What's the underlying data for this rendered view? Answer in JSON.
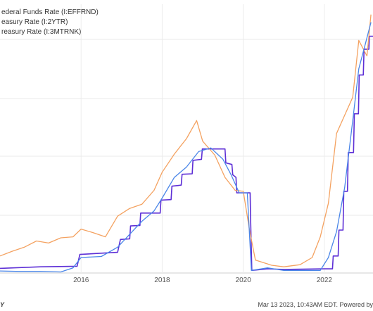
{
  "chart_data": {
    "type": "line",
    "title": "",
    "xlabel": "",
    "ylabel": "",
    "xlim": [
      2014.0,
      2023.2
    ],
    "ylim": [
      0,
      5.2
    ],
    "grid": true,
    "legend_placement": "top-left",
    "x_ticks": [
      {
        "value": 2016,
        "label": "2016"
      },
      {
        "value": 2018,
        "label": "2018"
      },
      {
        "value": 2020,
        "label": "2020"
      },
      {
        "value": 2022,
        "label": "2022"
      }
    ],
    "series": [
      {
        "name": "ederal Funds Rate (I:EFFRND)",
        "color": "#5d2fd6",
        "points": [
          [
            2014.0,
            0.09
          ],
          [
            2015.0,
            0.12
          ],
          [
            2015.9,
            0.13
          ],
          [
            2015.97,
            0.36
          ],
          [
            2016.9,
            0.4
          ],
          [
            2016.97,
            0.65
          ],
          [
            2017.2,
            0.66
          ],
          [
            2017.22,
            0.91
          ],
          [
            2017.45,
            0.92
          ],
          [
            2017.47,
            1.16
          ],
          [
            2017.95,
            1.16
          ],
          [
            2017.97,
            1.41
          ],
          [
            2018.22,
            1.42
          ],
          [
            2018.24,
            1.68
          ],
          [
            2018.47,
            1.7
          ],
          [
            2018.49,
            1.91
          ],
          [
            2018.74,
            1.92
          ],
          [
            2018.76,
            2.18
          ],
          [
            2018.97,
            2.2
          ],
          [
            2018.99,
            2.4
          ],
          [
            2019.55,
            2.4
          ],
          [
            2019.57,
            2.13
          ],
          [
            2019.72,
            2.1
          ],
          [
            2019.74,
            1.9
          ],
          [
            2019.82,
            1.85
          ],
          [
            2019.84,
            1.55
          ],
          [
            2020.17,
            1.55
          ],
          [
            2020.18,
            1.1
          ],
          [
            2020.21,
            0.05
          ],
          [
            2020.6,
            0.08
          ],
          [
            2021.0,
            0.07
          ],
          [
            2022.0,
            0.08
          ],
          [
            2022.2,
            0.08
          ],
          [
            2022.22,
            0.33
          ],
          [
            2022.34,
            0.33
          ],
          [
            2022.36,
            0.83
          ],
          [
            2022.46,
            0.83
          ],
          [
            2022.48,
            1.58
          ],
          [
            2022.57,
            1.58
          ],
          [
            2022.59,
            2.33
          ],
          [
            2022.72,
            2.33
          ],
          [
            2022.74,
            3.08
          ],
          [
            2022.84,
            3.08
          ],
          [
            2022.86,
            3.83
          ],
          [
            2022.96,
            3.83
          ],
          [
            2022.98,
            4.33
          ],
          [
            2023.1,
            4.33
          ],
          [
            2023.11,
            4.58
          ],
          [
            2023.2,
            4.58
          ]
        ]
      },
      {
        "name": "easury Rate (I:2YTR)",
        "color": "#f4a261",
        "points": [
          [
            2014.0,
            0.33
          ],
          [
            2014.3,
            0.42
          ],
          [
            2014.6,
            0.5
          ],
          [
            2014.9,
            0.62
          ],
          [
            2015.2,
            0.58
          ],
          [
            2015.5,
            0.68
          ],
          [
            2015.8,
            0.7
          ],
          [
            2016.0,
            0.85
          ],
          [
            2016.3,
            0.78
          ],
          [
            2016.6,
            0.7
          ],
          [
            2016.9,
            1.1
          ],
          [
            2017.2,
            1.25
          ],
          [
            2017.5,
            1.33
          ],
          [
            2017.8,
            1.6
          ],
          [
            2018.0,
            1.95
          ],
          [
            2018.3,
            2.3
          ],
          [
            2018.6,
            2.6
          ],
          [
            2018.85,
            2.95
          ],
          [
            2019.0,
            2.55
          ],
          [
            2019.3,
            2.28
          ],
          [
            2019.55,
            1.85
          ],
          [
            2019.8,
            1.6
          ],
          [
            2020.0,
            1.58
          ],
          [
            2020.15,
            0.85
          ],
          [
            2020.3,
            0.25
          ],
          [
            2020.7,
            0.15
          ],
          [
            2021.0,
            0.12
          ],
          [
            2021.4,
            0.16
          ],
          [
            2021.7,
            0.3
          ],
          [
            2021.9,
            0.7
          ],
          [
            2022.1,
            1.35
          ],
          [
            2022.3,
            2.7
          ],
          [
            2022.5,
            3.05
          ],
          [
            2022.7,
            3.4
          ],
          [
            2022.85,
            4.5
          ],
          [
            2022.95,
            4.35
          ],
          [
            2023.05,
            4.2
          ],
          [
            2023.15,
            5.0
          ]
        ]
      },
      {
        "name": "reasury Rate (I:3MTRNK)",
        "color": "#4a86e8",
        "points": [
          [
            2014.0,
            0.04
          ],
          [
            2014.5,
            0.03
          ],
          [
            2015.0,
            0.03
          ],
          [
            2015.5,
            0.02
          ],
          [
            2015.8,
            0.1
          ],
          [
            2016.0,
            0.3
          ],
          [
            2016.5,
            0.32
          ],
          [
            2016.9,
            0.5
          ],
          [
            2017.2,
            0.75
          ],
          [
            2017.5,
            1.0
          ],
          [
            2017.8,
            1.2
          ],
          [
            2018.0,
            1.45
          ],
          [
            2018.3,
            1.85
          ],
          [
            2018.6,
            2.05
          ],
          [
            2018.9,
            2.35
          ],
          [
            2019.2,
            2.42
          ],
          [
            2019.5,
            2.2
          ],
          [
            2019.7,
            1.9
          ],
          [
            2019.9,
            1.55
          ],
          [
            2020.1,
            1.55
          ],
          [
            2020.2,
            0.05
          ],
          [
            2020.6,
            0.1
          ],
          [
            2021.0,
            0.05
          ],
          [
            2021.5,
            0.05
          ],
          [
            2021.9,
            0.05
          ],
          [
            2022.1,
            0.3
          ],
          [
            2022.3,
            0.8
          ],
          [
            2022.5,
            1.65
          ],
          [
            2022.7,
            2.95
          ],
          [
            2022.85,
            3.95
          ],
          [
            2023.0,
            4.4
          ],
          [
            2023.15,
            4.85
          ]
        ]
      }
    ]
  },
  "footer": {
    "timestamp": "Mar 13 2023, 10:43AM EDT. Powered by",
    "logo_mark": "Y"
  }
}
